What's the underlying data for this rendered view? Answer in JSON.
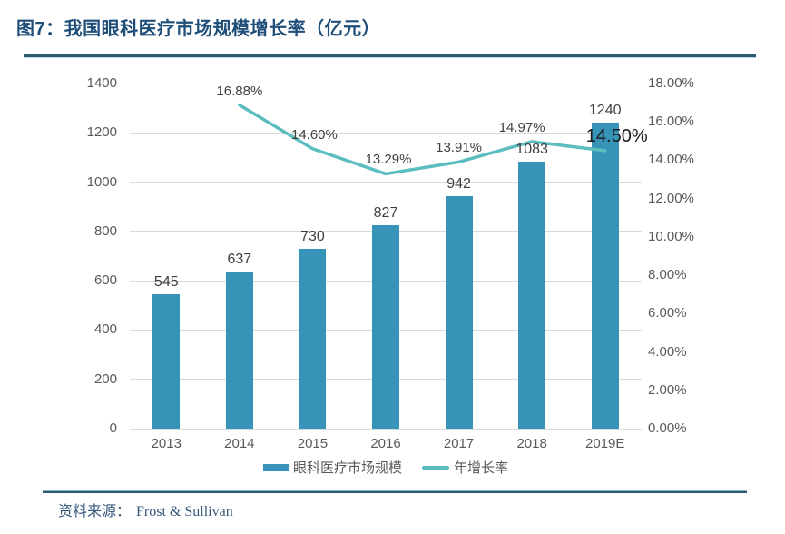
{
  "figure": {
    "title": "图7：我国眼科医疗市场规模增长率（亿元）",
    "source_label": "资料来源：",
    "source_value": "Frost & Sullivan"
  },
  "chart_data": {
    "type": "combo-bar-line",
    "title": "图7：我国眼科医疗市场规模增长率（亿元）",
    "categories": [
      "2013",
      "2014",
      "2015",
      "2016",
      "2017",
      "2018",
      "2019E"
    ],
    "series": [
      {
        "name": "眼科医疗市场规模",
        "type": "bar",
        "axis": "left",
        "values": [
          545,
          637,
          730,
          827,
          942,
          1083,
          1240
        ],
        "color": "#3794B9"
      },
      {
        "name": "年增长率",
        "type": "line",
        "axis": "right",
        "values": [
          null,
          16.88,
          14.6,
          13.29,
          13.91,
          14.97,
          14.5
        ],
        "labels": [
          "",
          "16.88%",
          "14.60%",
          "13.29%",
          "13.91%",
          "14.97%",
          "14.50%"
        ],
        "color": "#5BBDBF",
        "emphasized_label_index": 6,
        "label_offsets": [
          [
            0,
            -24
          ],
          [
            0,
            -24
          ],
          [
            2,
            -24
          ],
          [
            3,
            -24
          ],
          [
            0,
            -24
          ],
          [
            -11,
            -24
          ],
          [
            13,
            -27
          ]
        ]
      }
    ],
    "left_axis": {
      "min": 0,
      "max": 1400,
      "tick_step": 200,
      "tick_labels": [
        "1400",
        "1200",
        "1000",
        "800",
        "600",
        "400",
        "200",
        "0"
      ]
    },
    "right_axis": {
      "min": 0,
      "max": 18,
      "tick_step": 2,
      "tick_labels": [
        "18.00%",
        "16.00%",
        "14.00%",
        "12.00%",
        "10.00%",
        "8.00%",
        "6.00%",
        "4.00%",
        "2.00%",
        "0.00%"
      ]
    },
    "grid": "horizontal",
    "legend_position": "bottom-center",
    "colors": {
      "bar": "#3794B9",
      "line": "#5BBDBF",
      "title": "#1F4E79",
      "rule": "#2E5A6E",
      "gridline": "#D9D9D9",
      "axis_text": "#595959",
      "data_label_text": "#404040",
      "emphasis_label_text": "#1A1A1A",
      "source_text": "#35587C"
    }
  }
}
